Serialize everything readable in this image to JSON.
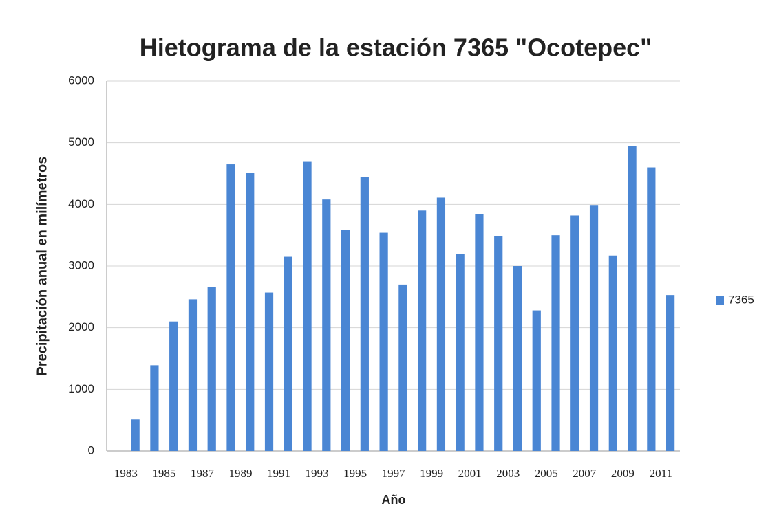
{
  "chart_data": {
    "type": "bar",
    "title": "Hietograma de la estación 7365 \"Ocotepec\"",
    "x_label": "Año",
    "y_label": "Precipitación anual en milímetros",
    "categories": [
      "1983",
      null,
      "1985",
      null,
      "1987",
      null,
      "1989",
      null,
      "1991",
      null,
      "1993",
      null,
      "1995",
      null,
      "1997",
      null,
      "1999",
      null,
      "2001",
      null,
      "2003",
      null,
      "2005",
      null,
      "2007",
      null,
      "2009",
      null,
      "2011",
      null
    ],
    "series": [
      {
        "name": "7365",
        "color": "#4a86d4",
        "values": [
          null,
          510,
          1390,
          2100,
          2460,
          2660,
          4650,
          4510,
          2570,
          3150,
          4700,
          4080,
          3590,
          4440,
          3540,
          2700,
          3900,
          4110,
          3200,
          3840,
          3480,
          3000,
          2280,
          3500,
          3820,
          3990,
          3170,
          4950,
          4600,
          2530
        ]
      }
    ],
    "ylim": [
      0,
      6000
    ],
    "yticks": [
      0,
      1000,
      2000,
      3000,
      4000,
      5000,
      6000
    ],
    "grid": true,
    "legend": "right"
  }
}
